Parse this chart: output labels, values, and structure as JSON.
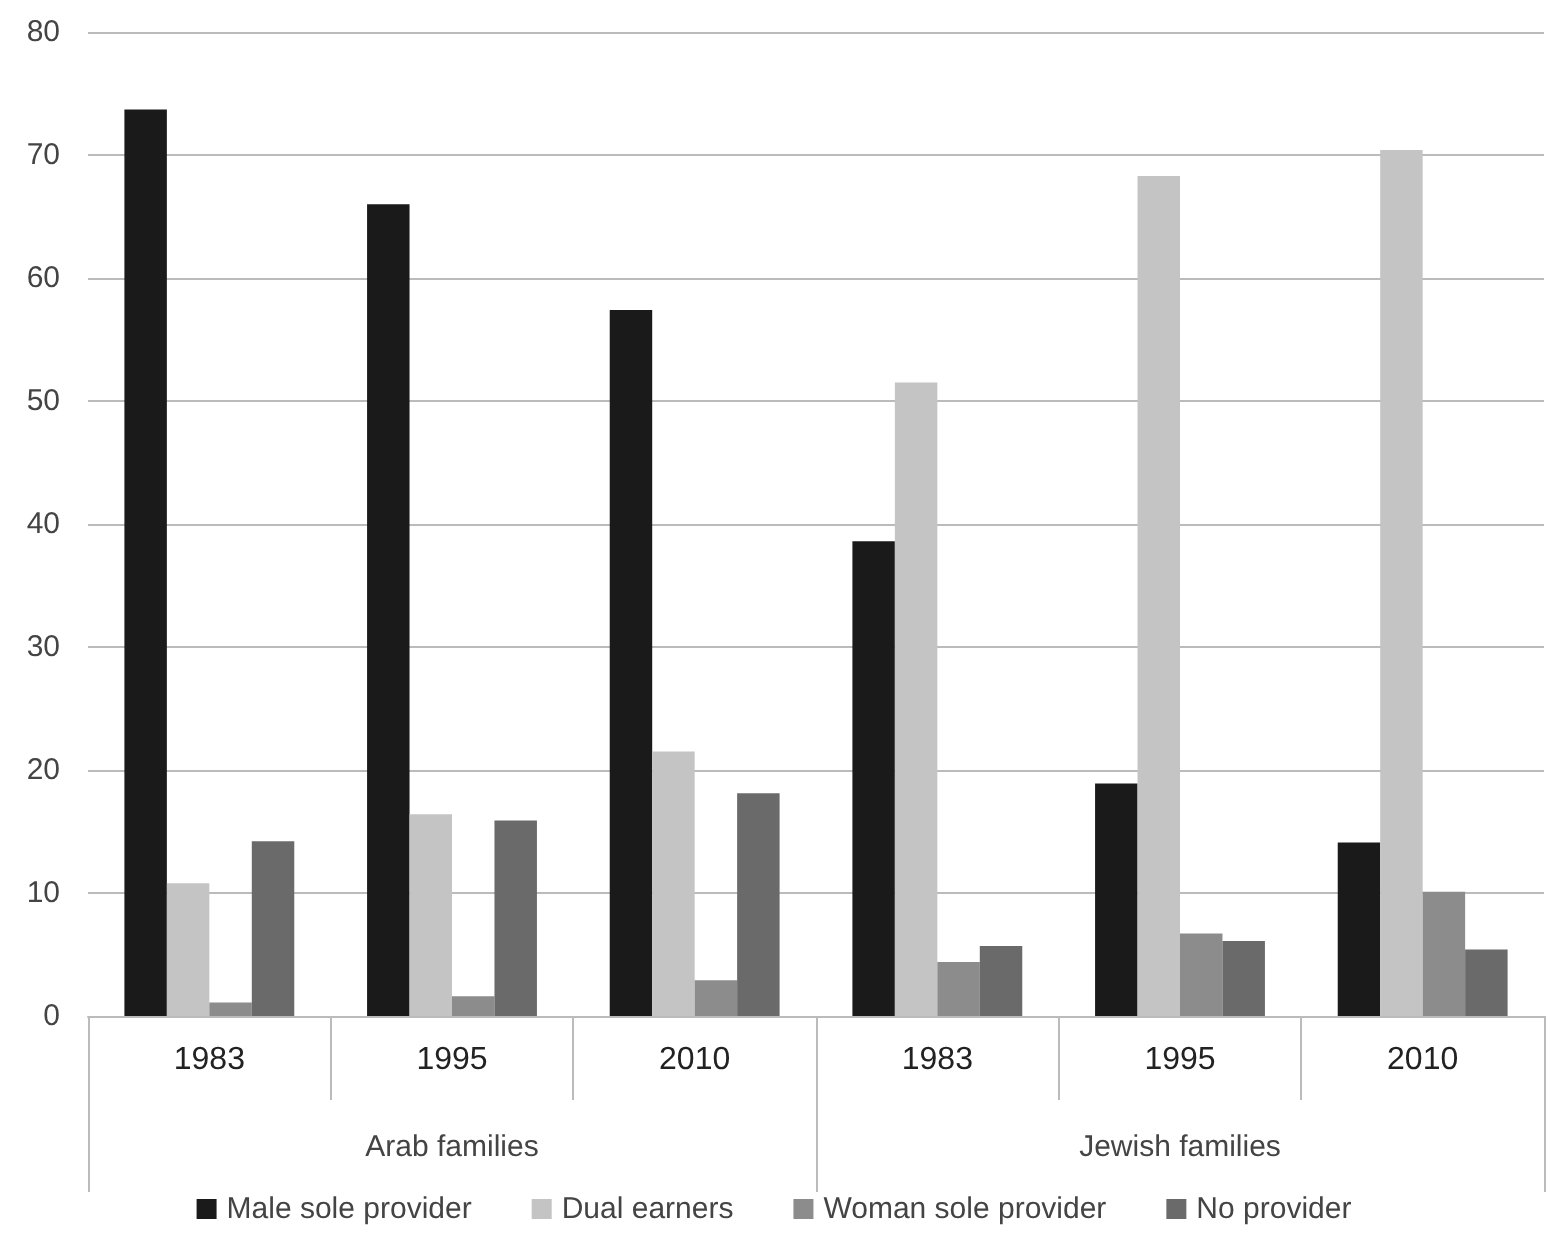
{
  "chart_data": {
    "type": "bar",
    "categories": [
      "1983",
      "1995",
      "2010",
      "1983",
      "1995",
      "2010"
    ],
    "annotations": [
      "Arab families",
      "Jewish families"
    ],
    "series": [
      {
        "name": "Male sole provider",
        "color": "#1a1a1a",
        "values": [
          73.7,
          66.0,
          57.4,
          38.6,
          18.9,
          14.1
        ]
      },
      {
        "name": "Dual earners",
        "color": "#c4c4c4",
        "values": [
          10.8,
          16.4,
          21.5,
          51.5,
          68.3,
          70.4
        ]
      },
      {
        "name": "Woman sole provider",
        "color": "#8c8c8c",
        "values": [
          1.1,
          1.6,
          2.9,
          4.4,
          6.7,
          10.1
        ]
      },
      {
        "name": "No provider",
        "color": "#6a6a6a",
        "values": [
          14.2,
          15.9,
          18.1,
          5.7,
          6.1,
          5.4
        ]
      }
    ],
    "ylim": [
      0,
      80
    ],
    "yticks": [
      0,
      10,
      20,
      30,
      40,
      50,
      60,
      70,
      80
    ],
    "grid": "y",
    "legend": "bottom"
  }
}
